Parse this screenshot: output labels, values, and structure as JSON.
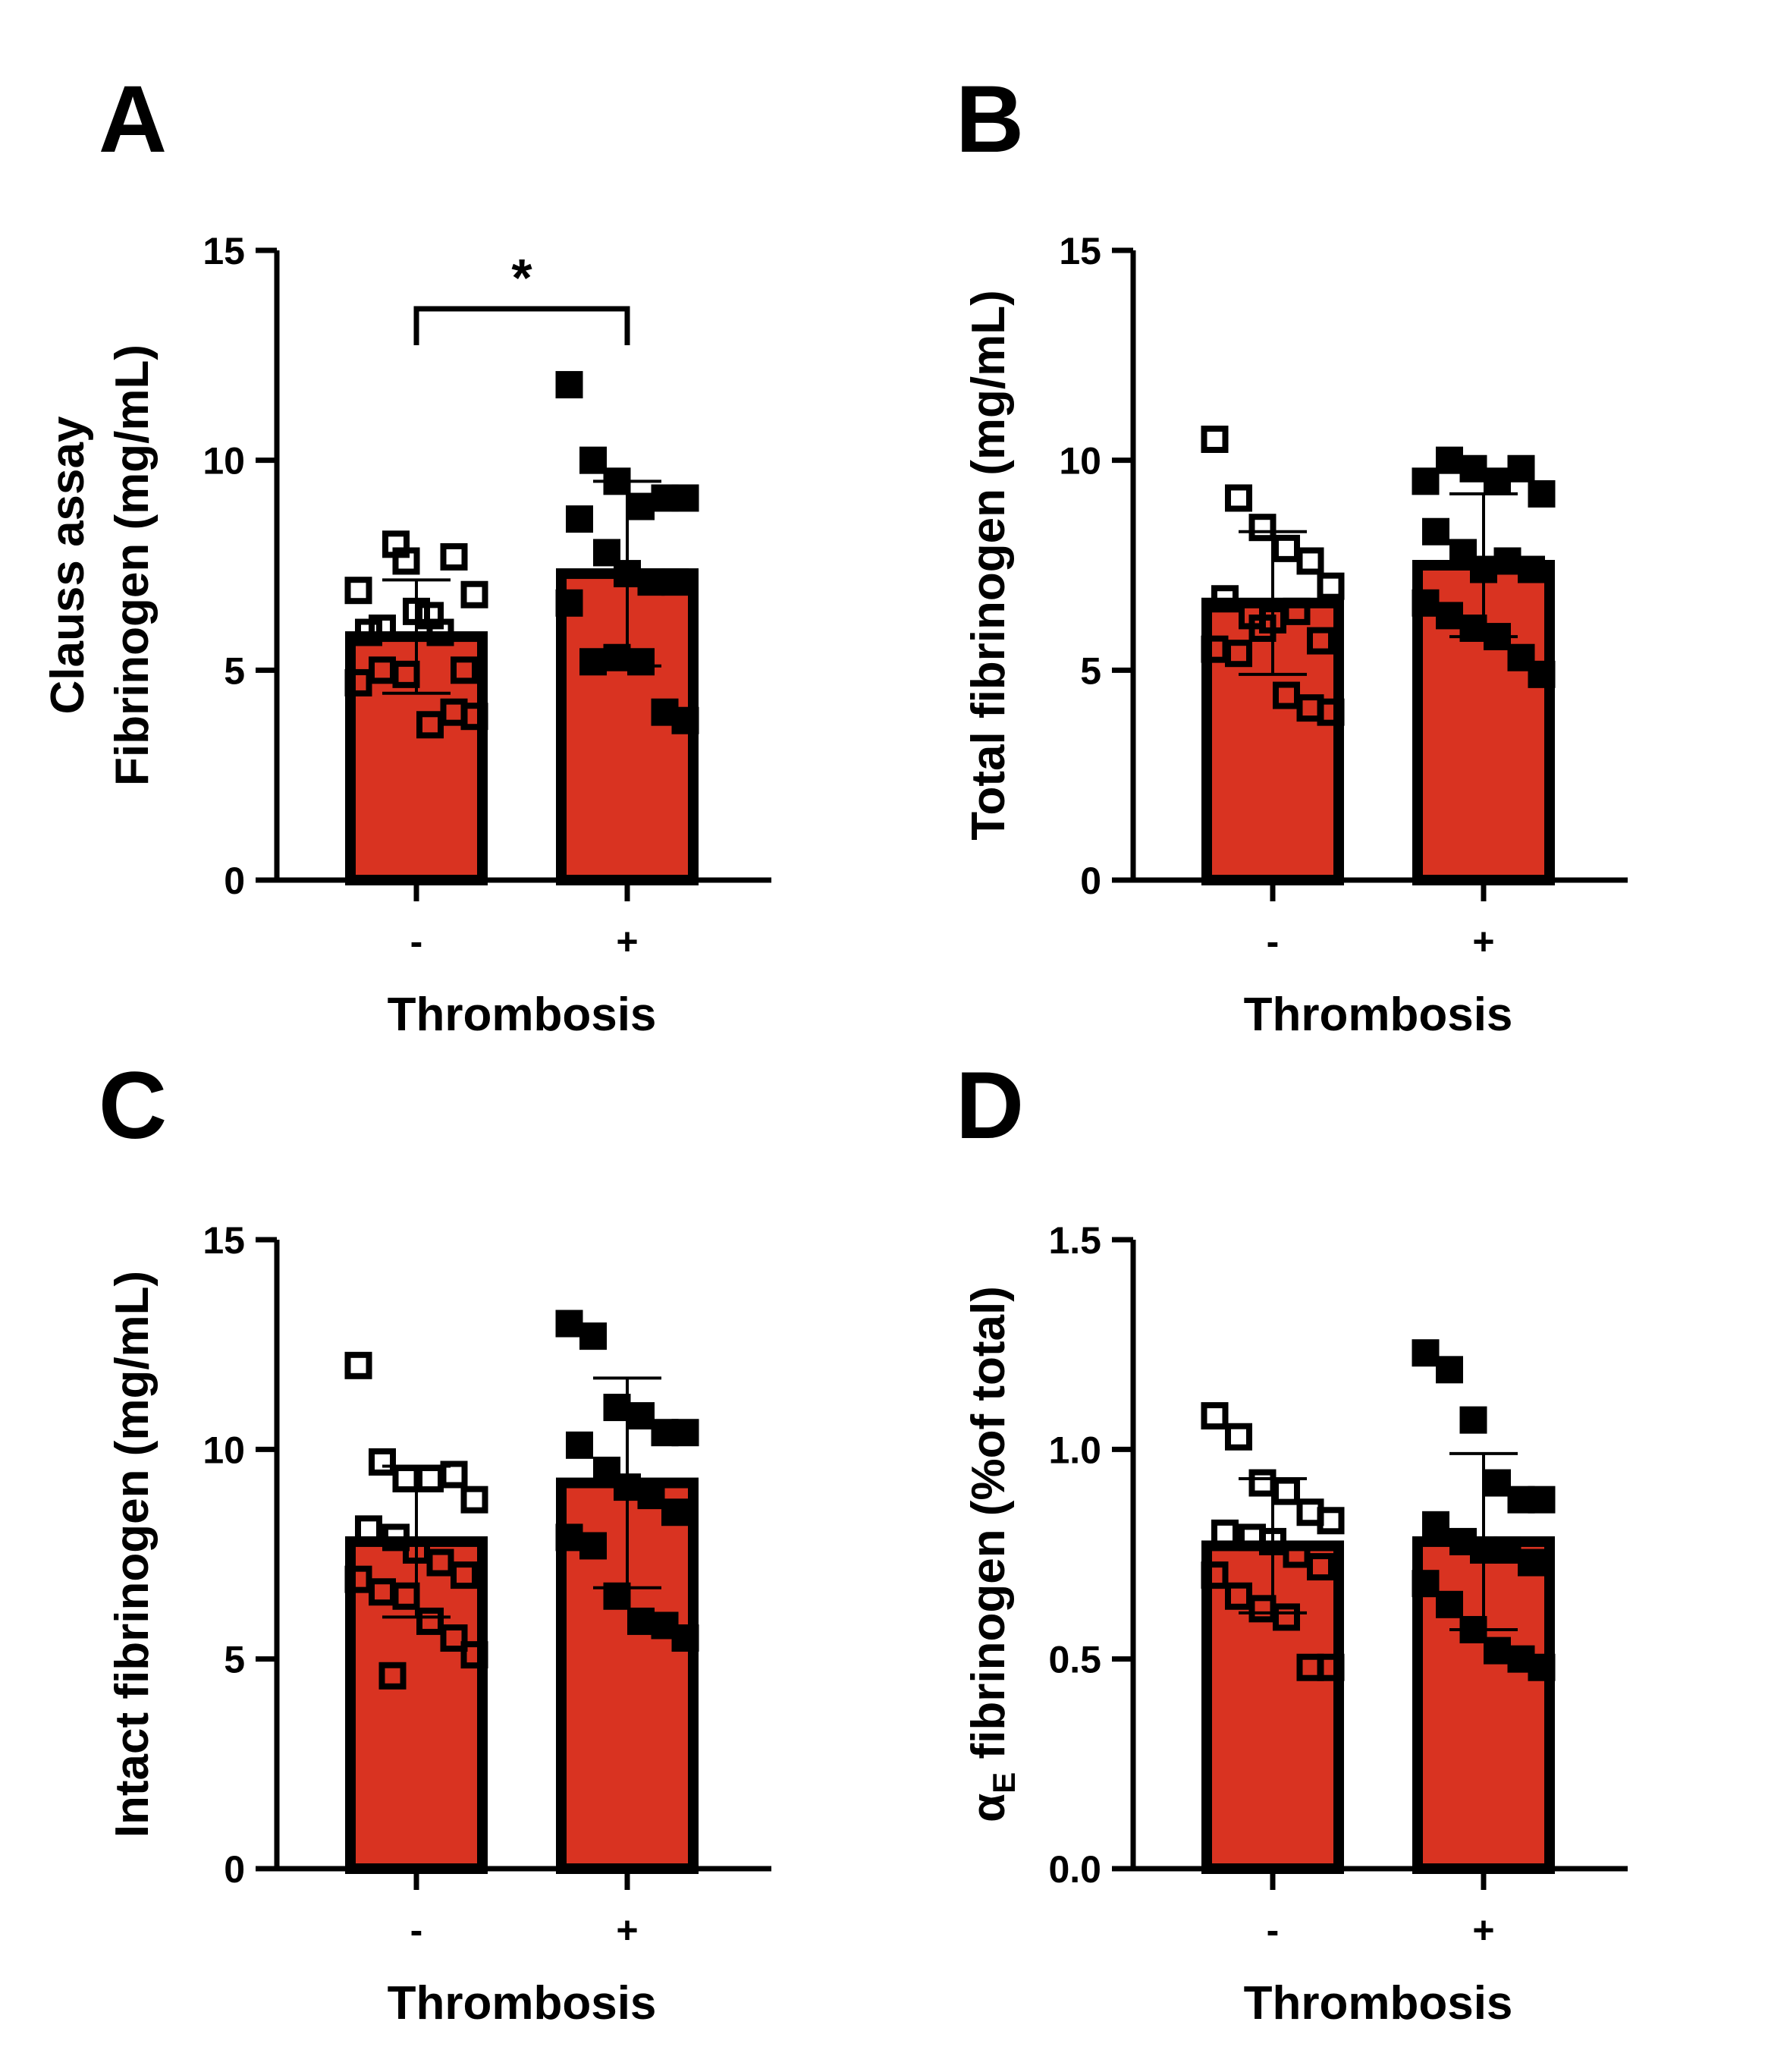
{
  "colors": {
    "bar": "#d93321",
    "stroke": "#000000",
    "open_marker_fill": "#ffffff",
    "filled_marker": "#000000"
  },
  "chart_data": [
    {
      "panel": "A",
      "type": "bar",
      "ylabel_lines": [
        "Clauss assay",
        "Fibrinogen (mg/mL)"
      ],
      "xlabel": "Thrombosis",
      "categories": [
        "-",
        "+"
      ],
      "ylim": [
        0,
        15
      ],
      "yticks": [
        "0",
        "5",
        "10",
        "15"
      ],
      "ytick_values": [
        0,
        5,
        10,
        15
      ],
      "bar_values": [
        5.8,
        7.3
      ],
      "error_sd": [
        1.35,
        2.2
      ],
      "points": [
        [
          6.9,
          6.0,
          7.6,
          6.3,
          7.7,
          6.8,
          5.9,
          8.0,
          6.4,
          5.9,
          5.0,
          4.7,
          5.0,
          4.9,
          3.7,
          4.0,
          3.9
        ],
        [
          11.8,
          10.0,
          9.5,
          8.9,
          9.1,
          9.1,
          8.6,
          7.8,
          7.3,
          7.1,
          7.1,
          6.6,
          5.2,
          5.3,
          5.2,
          4.0,
          3.8
        ]
      ],
      "significance": "*"
    },
    {
      "panel": "B",
      "type": "bar",
      "ylabel_lines": [
        "Total fibrinogen (mg/mL)"
      ],
      "xlabel": "Thrombosis",
      "categories": [
        "-",
        "+"
      ],
      "ylim": [
        0,
        15
      ],
      "yticks": [
        "0",
        "5",
        "10",
        "15"
      ],
      "ytick_values": [
        0,
        5,
        10,
        15
      ],
      "bar_values": [
        6.6,
        7.5
      ],
      "error_sd": [
        1.7,
        1.7
      ],
      "points": [
        [
          10.5,
          9.1,
          8.4,
          7.9,
          7.6,
          7.0,
          6.7,
          6.3,
          6.2,
          6.4,
          5.7,
          5.5,
          5.4,
          6.0,
          4.4,
          4.1,
          4.0
        ],
        [
          9.5,
          10.0,
          9.8,
          9.5,
          9.8,
          9.2,
          8.3,
          7.8,
          7.4,
          7.6,
          7.4,
          6.6,
          6.3,
          6.0,
          5.8,
          5.3,
          4.9
        ]
      ]
    },
    {
      "panel": "C",
      "type": "bar",
      "ylabel_lines": [
        "Intact fibrinogen (mg/mL)"
      ],
      "xlabel": "Thrombosis",
      "categories": [
        "-",
        "+"
      ],
      "ylim": [
        0,
        15
      ],
      "yticks": [
        "0",
        "5",
        "10",
        "15"
      ],
      "ytick_values": [
        0,
        5,
        10,
        15
      ],
      "bar_values": [
        7.8,
        9.2
      ],
      "error_sd": [
        1.8,
        2.5
      ],
      "points": [
        [
          12.0,
          9.7,
          9.3,
          9.3,
          9.4,
          8.8,
          8.1,
          7.9,
          7.6,
          7.3,
          7.0,
          6.9,
          6.6,
          6.5,
          5.9,
          5.5,
          5.1,
          4.6
        ],
        [
          13.0,
          12.7,
          11.0,
          10.8,
          10.4,
          10.4,
          10.1,
          9.5,
          9.1,
          8.9,
          8.5,
          7.9,
          7.7,
          6.5,
          5.9,
          5.8,
          5.5
        ]
      ]
    },
    {
      "panel": "D",
      "type": "bar",
      "ylabel_main": "α",
      "ylabel_sub": "E",
      "ylabel_rest": " fibrinogen (%of total)",
      "xlabel": "Thrombosis",
      "categories": [
        "-",
        "+"
      ],
      "ylim": [
        0,
        1.5
      ],
      "yticks": [
        "0.0",
        "0.5",
        "1.0",
        "1.5"
      ],
      "ytick_values": [
        0,
        0.5,
        1.0,
        1.5
      ],
      "bar_values": [
        0.77,
        0.78
      ],
      "error_sd": [
        0.16,
        0.21
      ],
      "points": [
        [
          1.08,
          1.03,
          0.92,
          0.9,
          0.85,
          0.83,
          0.8,
          0.79,
          0.78,
          0.75,
          0.72,
          0.7,
          0.65,
          0.62,
          0.6,
          0.48,
          0.48
        ],
        [
          1.23,
          1.19,
          1.07,
          0.92,
          0.88,
          0.88,
          0.82,
          0.78,
          0.76,
          0.76,
          0.73,
          0.68,
          0.63,
          0.57,
          0.52,
          0.5,
          0.48
        ]
      ]
    }
  ]
}
